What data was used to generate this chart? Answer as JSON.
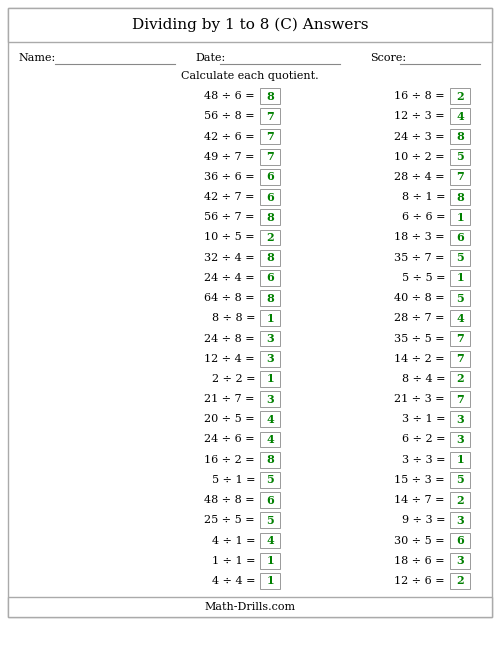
{
  "title": "Dividing by 1 to 8 (C) Answers",
  "name_label": "Name:",
  "date_label": "Date:",
  "score_label": "Score:",
  "instruction": "Calculate each quotient.",
  "footer": "Math-Drills.com",
  "left_problems": [
    [
      "48 ÷ 6 =",
      "8"
    ],
    [
      "56 ÷ 8 =",
      "7"
    ],
    [
      "42 ÷ 6 =",
      "7"
    ],
    [
      "49 ÷ 7 =",
      "7"
    ],
    [
      "36 ÷ 6 =",
      "6"
    ],
    [
      "42 ÷ 7 =",
      "6"
    ],
    [
      "56 ÷ 7 =",
      "8"
    ],
    [
      "10 ÷ 5 =",
      "2"
    ],
    [
      "32 ÷ 4 =",
      "8"
    ],
    [
      "24 ÷ 4 =",
      "6"
    ],
    [
      "64 ÷ 8 =",
      "8"
    ],
    [
      "8 ÷ 8 =",
      "1"
    ],
    [
      "24 ÷ 8 =",
      "3"
    ],
    [
      "12 ÷ 4 =",
      "3"
    ],
    [
      "2 ÷ 2 =",
      "1"
    ],
    [
      "21 ÷ 7 =",
      "3"
    ],
    [
      "20 ÷ 5 =",
      "4"
    ],
    [
      "24 ÷ 6 =",
      "4"
    ],
    [
      "16 ÷ 2 =",
      "8"
    ],
    [
      "5 ÷ 1 =",
      "5"
    ],
    [
      "48 ÷ 8 =",
      "6"
    ],
    [
      "25 ÷ 5 =",
      "5"
    ],
    [
      "4 ÷ 1 =",
      "4"
    ],
    [
      "1 ÷ 1 =",
      "1"
    ],
    [
      "4 ÷ 4 =",
      "1"
    ]
  ],
  "right_problems": [
    [
      "16 ÷ 8 =",
      "2"
    ],
    [
      "12 ÷ 3 =",
      "4"
    ],
    [
      "24 ÷ 3 =",
      "8"
    ],
    [
      "10 ÷ 2 =",
      "5"
    ],
    [
      "28 ÷ 4 =",
      "7"
    ],
    [
      "8 ÷ 1 =",
      "8"
    ],
    [
      "6 ÷ 6 =",
      "1"
    ],
    [
      "18 ÷ 3 =",
      "6"
    ],
    [
      "35 ÷ 7 =",
      "5"
    ],
    [
      "5 ÷ 5 =",
      "1"
    ],
    [
      "40 ÷ 8 =",
      "5"
    ],
    [
      "28 ÷ 7 =",
      "4"
    ],
    [
      "35 ÷ 5 =",
      "7"
    ],
    [
      "14 ÷ 2 =",
      "7"
    ],
    [
      "8 ÷ 4 =",
      "2"
    ],
    [
      "21 ÷ 3 =",
      "7"
    ],
    [
      "3 ÷ 1 =",
      "3"
    ],
    [
      "6 ÷ 2 =",
      "3"
    ],
    [
      "3 ÷ 3 =",
      "1"
    ],
    [
      "15 ÷ 3 =",
      "5"
    ],
    [
      "14 ÷ 7 =",
      "2"
    ],
    [
      "9 ÷ 3 =",
      "3"
    ],
    [
      "30 ÷ 5 =",
      "6"
    ],
    [
      "18 ÷ 6 =",
      "3"
    ],
    [
      "12 ÷ 6 =",
      "2"
    ]
  ],
  "answer_color": "#008000",
  "text_color": "#000000",
  "box_edge_color": "#999999",
  "background_color": "#ffffff",
  "title_fontsize": 11,
  "problem_fontsize": 8,
  "answer_fontsize": 8,
  "header_fontsize": 8,
  "footer_fontsize": 8
}
